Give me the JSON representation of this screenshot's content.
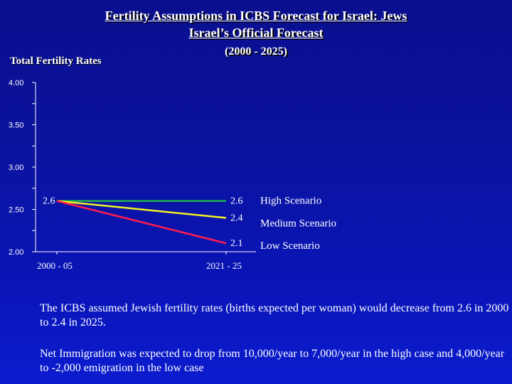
{
  "title": {
    "line1": "Fertility Assumptions in ICBS Forecast for Israel:  Jews",
    "line2": "Israel’s Official Forecast",
    "line3": "(2000 - 2025)"
  },
  "chart_data": {
    "type": "line",
    "ylabel": "Total Fertility Rates",
    "xlabel": "",
    "ylim": [
      2.0,
      4.0
    ],
    "yticks": [
      "4.00",
      "3.50",
      "3.00",
      "2.50",
      "2.00"
    ],
    "x": [
      "2000 - 05",
      "2021 - 25"
    ],
    "grid": false,
    "legend": "right",
    "series": [
      {
        "name": "High Scenario",
        "values": [
          2.6,
          2.6
        ],
        "color": "#22b24c",
        "start_label": "2.6",
        "end_label": "2.6"
      },
      {
        "name": "Medium Scenario",
        "values": [
          2.6,
          2.4
        ],
        "color": "#f2f222",
        "start_label": "",
        "end_label": "2.4"
      },
      {
        "name": "Low Scenario",
        "values": [
          2.6,
          2.1
        ],
        "color": "#ff1e4b",
        "start_label": "",
        "end_label": "2.1"
      }
    ]
  },
  "notes": {
    "note1": "The ICBS assumed Jewish fertility rates (births expected per woman) would decrease from 2.6 in 2000 to 2.4 in 2025.",
    "note2": "Net Immigration was expected to drop from 10,000/year to 7,000/year in the high case and 4,000/year to -2,000 emigration in the low case"
  },
  "colors": {
    "background_top": "#0a0f8f",
    "background_bottom": "#0b1ccf",
    "axis": "#ffffff"
  }
}
